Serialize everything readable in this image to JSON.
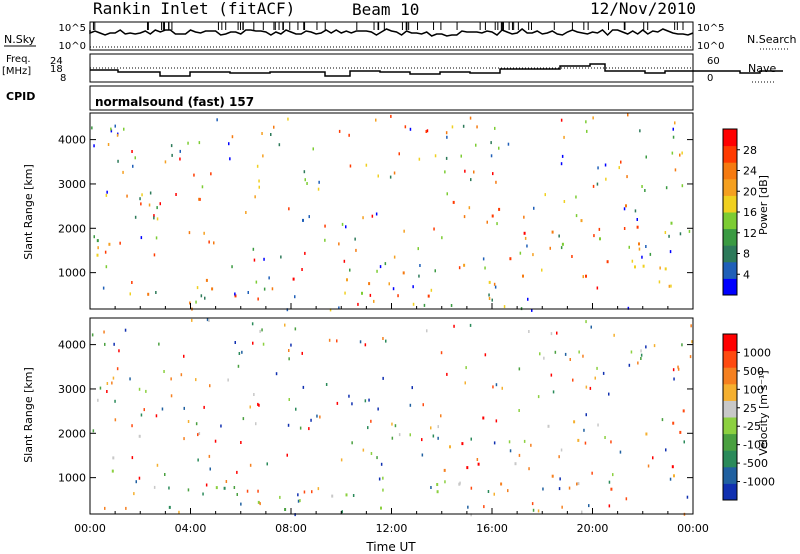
{
  "header": {
    "station": "Rankin Inlet (fitACF)",
    "beam": "Beam 10",
    "date": "12/Nov/2010"
  },
  "status_panels": {
    "nsky_label": "N.Sky",
    "nsky_ticks": [
      "10^5",
      "10^0"
    ],
    "nsearch_label": "N.Search",
    "nsearch_ticks": [
      "10^5",
      "10^0"
    ],
    "freq_label_1": "Freq.",
    "freq_label_2": "[MHz]",
    "freq_ticks": [
      "18",
      "8"
    ],
    "freq_top_tick": "24",
    "nave_label": "Nave",
    "nave_ticks": [
      "60",
      "0"
    ],
    "cpid_label": "CPID",
    "cpid_value": "normalsound (fast) 157"
  },
  "colors": {
    "background_band": "#ffffff",
    "axis": "#000000"
  },
  "chart_data": [
    {
      "type": "heatmap",
      "panel": "power",
      "ylabel": "Slant Range [km]",
      "y_ticks": [
        1000,
        2000,
        3000,
        4000
      ],
      "ylim": [
        180,
        4600
      ],
      "x_ticks": [
        "00:00",
        "04:00",
        "08:00",
        "12:00",
        "16:00",
        "20:00",
        "00:00"
      ],
      "xlim_hours": [
        0,
        24
      ],
      "colorbar": {
        "label": "Power [dB]",
        "ticks": [
          "4",
          "8",
          "12",
          "16",
          "20",
          "24",
          "28"
        ],
        "colors": [
          "#0000ff",
          "#1f5fb8",
          "#2d7a5a",
          "#3a9a42",
          "#7ccc33",
          "#f0d020",
          "#f5a020",
          "#f57a10",
          "#ff3a00",
          "#ff0000"
        ]
      },
      "scatter_bands": [
        {
          "t0": 0.0,
          "t1": 2.0,
          "r0": 800,
          "r1": 2000,
          "level": 0.55
        },
        {
          "t0": 2.0,
          "t1": 8.5,
          "r0": 250,
          "r1": 900,
          "level": 0.85
        },
        {
          "t0": 7.5,
          "t1": 8.5,
          "r0": 1300,
          "r1": 2200,
          "level": 0.35
        },
        {
          "t0": 8.5,
          "t1": 14.0,
          "r0": 250,
          "r1": 1000,
          "level": 0.6
        },
        {
          "t0": 14.0,
          "t1": 24.0,
          "r0": 700,
          "r1": 2600,
          "level": 0.7
        }
      ]
    },
    {
      "type": "heatmap",
      "panel": "velocity",
      "ylabel": "Slant Range [km]",
      "y_ticks": [
        1000,
        2000,
        3000,
        4000
      ],
      "ylim": [
        180,
        4600
      ],
      "x_ticks": [
        "00:00",
        "04:00",
        "08:00",
        "12:00",
        "16:00",
        "20:00",
        "00:00"
      ],
      "xlabel": "Time UT",
      "xlim_hours": [
        0,
        24
      ],
      "colorbar": {
        "label": "Velocity [m s⁻¹]",
        "ticks": [
          "1000",
          "500",
          "100",
          "25",
          "-25",
          "-100",
          "-500",
          "-1000"
        ],
        "colors": [
          "#1030b0",
          "#2060a0",
          "#2a8a5a",
          "#4aa040",
          "#8cd040",
          "#c8c8c8",
          "#f5b030",
          "#f58020",
          "#ff4a10",
          "#ff0000"
        ]
      },
      "scatter_bands": [
        {
          "t0": 0.0,
          "t1": 2.0,
          "r0": 800,
          "r1": 2000,
          "level": 0.35
        },
        {
          "t0": 2.0,
          "t1": 8.5,
          "r0": 250,
          "r1": 900,
          "level": 0.3
        },
        {
          "t0": 8.5,
          "t1": 14.0,
          "r0": 250,
          "r1": 1000,
          "level": 0.5
        },
        {
          "t0": 14.0,
          "t1": 24.0,
          "r0": 700,
          "r1": 2600,
          "level": 0.75
        }
      ]
    }
  ]
}
